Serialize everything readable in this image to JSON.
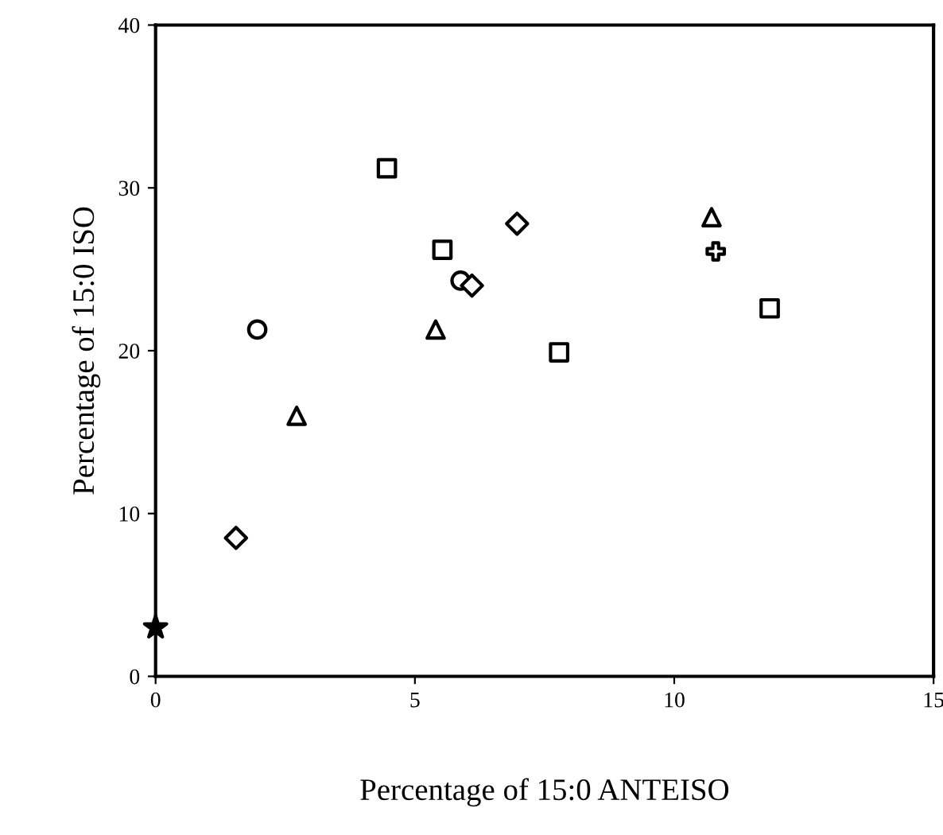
{
  "chart_data": {
    "type": "scatter",
    "xlabel": "Percentage of 15:0 ANTEISO",
    "ylabel": "Percentage of 15:0 ISO",
    "xlim": [
      0,
      15
    ],
    "ylim": [
      0,
      40
    ],
    "xticks": [
      0,
      5,
      10,
      15
    ],
    "yticks": [
      0,
      10,
      20,
      30,
      40
    ],
    "grid": false,
    "legend": false,
    "series": [
      {
        "color": "#000000",
        "marker": "star",
        "x": [
          0
        ],
        "values": [
          3
        ]
      },
      {
        "color": "#000000",
        "marker": "diamond",
        "x": [
          1.55
        ],
        "values": [
          8.5
        ]
      },
      {
        "color": "#000000",
        "marker": "circle",
        "x": [
          1.96
        ],
        "values": [
          21.3
        ]
      },
      {
        "color": "#000000",
        "marker": "triangle",
        "x": [
          2.72
        ],
        "values": [
          16.0
        ]
      },
      {
        "color": "#000000",
        "marker": "square",
        "x": [
          4.46
        ],
        "values": [
          31.2
        ]
      },
      {
        "color": "#000000",
        "marker": "square",
        "x": [
          5.53
        ],
        "values": [
          26.2
        ]
      },
      {
        "color": "#000000",
        "marker": "triangle",
        "x": [
          5.4
        ],
        "values": [
          21.3
        ]
      },
      {
        "color": "#000000",
        "marker": "circle",
        "x": [
          5.88
        ],
        "values": [
          24.3
        ]
      },
      {
        "color": "#000000",
        "marker": "diamond",
        "x": [
          6.1
        ],
        "values": [
          24.0
        ]
      },
      {
        "color": "#000000",
        "marker": "diamond",
        "x": [
          6.97
        ],
        "values": [
          27.8
        ]
      },
      {
        "color": "#000000",
        "marker": "square",
        "x": [
          7.78
        ],
        "values": [
          19.9
        ]
      },
      {
        "color": "#000000",
        "marker": "triangle",
        "x": [
          10.72
        ],
        "values": [
          28.2
        ]
      },
      {
        "color": "#000000",
        "marker": "cross",
        "x": [
          10.8
        ],
        "values": [
          26.1
        ]
      },
      {
        "color": "#000000",
        "marker": "square",
        "x": [
          11.84
        ],
        "values": [
          22.6
        ]
      }
    ]
  }
}
